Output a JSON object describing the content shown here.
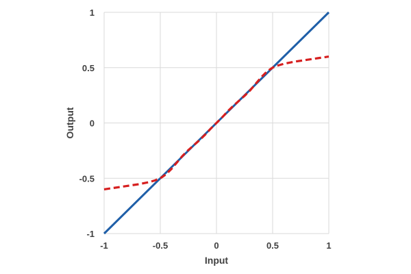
{
  "chart_data": {
    "type": "line",
    "xlabel": "Input",
    "ylabel": "Output",
    "xlim": [
      -1,
      1
    ],
    "ylim": [
      -1,
      1
    ],
    "x_ticks": [
      "-1",
      "-0.5",
      "0",
      "0.5",
      "1"
    ],
    "y_ticks": [
      "-1",
      "-0.5",
      "0",
      "0.5",
      "1"
    ],
    "grid": true,
    "series": [
      {
        "style": "solid",
        "color": "#1f5fa8",
        "x": [
          -1,
          1
        ],
        "y": [
          -1,
          1
        ]
      },
      {
        "style": "dashed",
        "color": "#d61f1f",
        "x": [
          -1,
          -0.9,
          -0.8,
          -0.7,
          -0.6,
          -0.55,
          -0.5,
          -0.45,
          -0.4,
          -0.35,
          -0.3,
          -0.25,
          -0.2,
          -0.15,
          -0.1,
          -0.05,
          0,
          0.05,
          0.1,
          0.15,
          0.2,
          0.25,
          0.3,
          0.35,
          0.4,
          0.45,
          0.5,
          0.55,
          0.6,
          0.7,
          0.8,
          0.9,
          1
        ],
        "y": [
          -0.6,
          -0.585,
          -0.57,
          -0.555,
          -0.535,
          -0.52,
          -0.5,
          -0.465,
          -0.415,
          -0.355,
          -0.295,
          -0.245,
          -0.2,
          -0.155,
          -0.105,
          -0.05,
          0,
          0.05,
          0.105,
          0.155,
          0.2,
          0.245,
          0.295,
          0.355,
          0.415,
          0.465,
          0.5,
          0.52,
          0.535,
          0.555,
          0.57,
          0.585,
          0.6
        ]
      }
    ]
  }
}
